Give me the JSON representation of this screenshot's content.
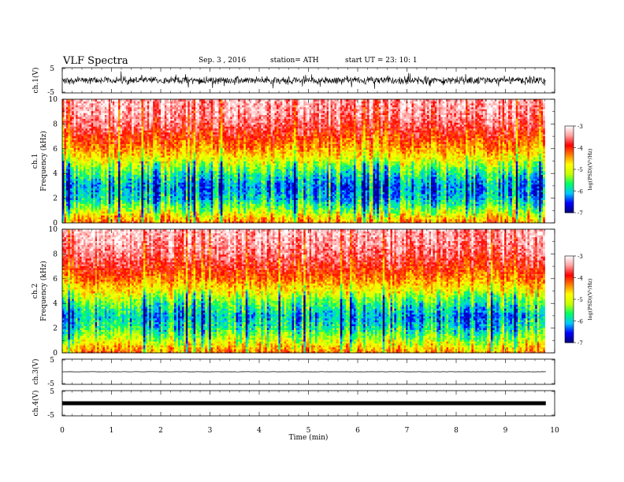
{
  "header": {
    "title": "VLF  Spectra",
    "date": "Sep. 3  , 2016",
    "station": "station= ATH",
    "start": "start  UT  =   23: 10: 1"
  },
  "chart_data": [
    {
      "type": "line",
      "name": "ch1-waveform",
      "ylabel": "ch.1(V)",
      "ylim": [
        -5,
        5
      ],
      "yticks": [
        "5",
        "-5"
      ],
      "xlim": [
        0,
        10
      ],
      "level": 0,
      "amplitude": 1.2
    },
    {
      "type": "heatmap",
      "name": "ch1-spectrogram",
      "ylabel": "ch.1\nFrequency  (kHz)",
      "ylim": [
        0,
        10
      ],
      "yticks": [
        "0",
        "2",
        "4",
        "6",
        "8",
        "10"
      ],
      "xlim": [
        0,
        9.8
      ],
      "colorbar": {
        "label": "log(PSD)(V²/Hz)",
        "range": [
          -7,
          -3
        ],
        "ticks": [
          "-3",
          "-4",
          "-5",
          "-6",
          "-7"
        ]
      },
      "profile_khz": [
        0,
        1,
        2,
        3,
        4,
        5,
        6,
        7,
        8,
        9,
        10
      ],
      "profile_logpsd": [
        -4.2,
        -5.2,
        -6.0,
        -6.2,
        -5.7,
        -5.0,
        -4.4,
        -4.0,
        -3.6,
        -3.4,
        -3.3
      ]
    },
    {
      "type": "heatmap",
      "name": "ch2-spectrogram",
      "ylabel": "ch.2\nFrequency  (kHz)",
      "ylim": [
        0,
        10
      ],
      "yticks": [
        "0",
        "2",
        "4",
        "6",
        "8",
        "10"
      ],
      "xlim": [
        0,
        9.8
      ],
      "colorbar": {
        "label": "log(PSD)(V²/Hz)",
        "range": [
          -7,
          -3
        ],
        "ticks": [
          "-3",
          "-4",
          "-5",
          "-6",
          "-7"
        ]
      },
      "profile_khz": [
        0,
        1,
        2,
        3,
        4,
        5,
        6,
        7,
        8,
        9,
        10
      ],
      "profile_logpsd": [
        -4.3,
        -5.1,
        -5.8,
        -6.1,
        -5.6,
        -4.9,
        -4.3,
        -3.9,
        -3.6,
        -3.4,
        -3.3
      ]
    },
    {
      "type": "line",
      "name": "ch3-waveform",
      "ylabel": "ch.3(V)",
      "ylim": [
        -5,
        5
      ],
      "yticks": [
        "5",
        "-5"
      ],
      "xlim": [
        0,
        10
      ],
      "level": 0,
      "amplitude": 0.05
    },
    {
      "type": "line",
      "name": "ch4-waveform",
      "ylabel": "ch.4(V)",
      "ylim": [
        -5,
        5
      ],
      "yticks": [
        "5",
        "-5"
      ],
      "xlim": [
        0,
        10
      ],
      "level": 0,
      "amplitude": 0.3
    }
  ],
  "x_axis": {
    "label": "Time  (min)",
    "range": [
      0,
      10
    ],
    "ticks": [
      "0",
      "1",
      "2",
      "3",
      "4",
      "5",
      "6",
      "7",
      "8",
      "9",
      "10"
    ]
  },
  "colors": {
    "scale": [
      "#00007a",
      "#0000ff",
      "#00c8ff",
      "#00ff64",
      "#c8ff00",
      "#ffff00",
      "#ff8000",
      "#ff0000",
      "#ffa0a0",
      "#ffffff"
    ]
  }
}
